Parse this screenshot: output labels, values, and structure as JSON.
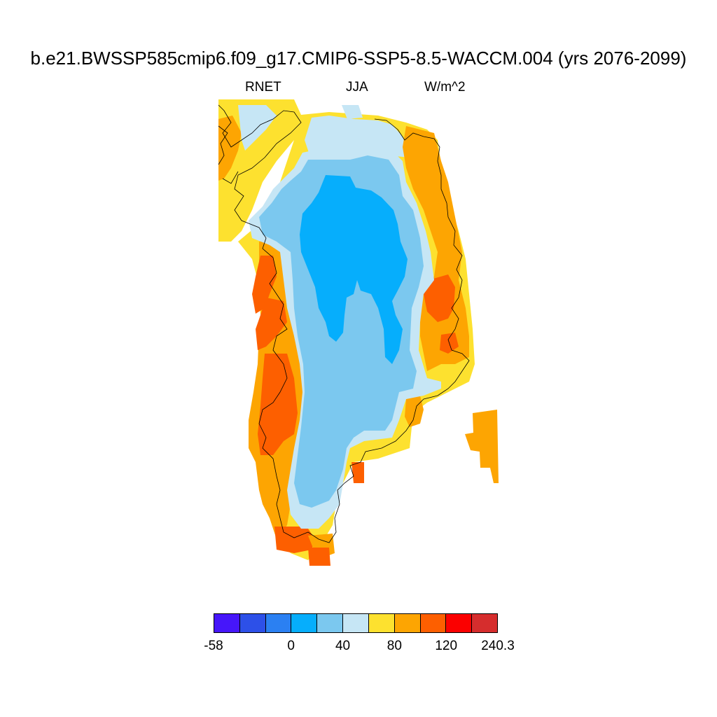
{
  "title": "b.e21.BWSSP585cmip6.f09_g17.CMIP6-SSP5-8.5-WACCM.004 (yrs 2076-2099)",
  "subtitle": {
    "variable": "RNET",
    "season": "JJA",
    "units": "W/m^2"
  },
  "colorbar": {
    "colors": [
      "#4616fa",
      "#2d50e8",
      "#2b80f2",
      "#06aefc",
      "#7bc8ef",
      "#c6e6f5",
      "#fde12f",
      "#fda502",
      "#fd5f00",
      "#fb0000",
      "#d62d2d"
    ],
    "tick_labels": [
      "-58",
      "0",
      "40",
      "80",
      "120",
      "240.3"
    ]
  },
  "map": {
    "region": "Greenland",
    "colors": {
      "c3": "#06aefc",
      "c4": "#7bc8ef",
      "c5": "#c6e6f5",
      "c6": "#fde12f",
      "c7": "#fda502",
      "c8": "#fd5f00"
    }
  }
}
